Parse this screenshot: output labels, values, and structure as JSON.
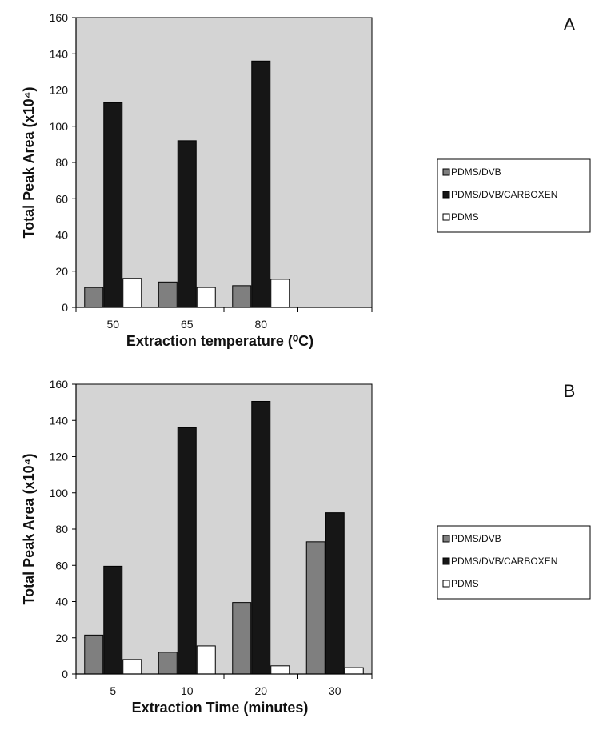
{
  "colors": {
    "plot_background": "#d4d4d4",
    "PDMS/DVB": "#7f7f7f",
    "PDMS/DVB/CARBOXEN": "#161616",
    "PDMS": "#ffffff",
    "axis": "#000000"
  },
  "chart_data": [
    {
      "type": "bar",
      "panel_label": "A",
      "title": "",
      "xlabel": "Extraction temperature (⁰C)",
      "ylabel": "Total Peak Area (x10⁴)",
      "categories": [
        "50",
        "65",
        "80"
      ],
      "category_slots": 4,
      "ylim": [
        0,
        160
      ],
      "yticks": [
        0,
        20,
        40,
        60,
        80,
        100,
        120,
        140,
        160
      ],
      "grid": false,
      "legend_position": "right",
      "series": [
        {
          "name": "PDMS/DVB",
          "values": [
            11,
            14,
            12
          ]
        },
        {
          "name": "PDMS/DVB/CARBOXEN",
          "values": [
            113,
            92,
            136
          ]
        },
        {
          "name": "PDMS",
          "values": [
            16,
            11,
            15.5
          ]
        }
      ]
    },
    {
      "type": "bar",
      "panel_label": "B",
      "title": "",
      "xlabel": "Extraction Time (minutes)",
      "ylabel": "Total Peak Area (x10⁴)",
      "categories": [
        "5",
        "10",
        "20",
        "30"
      ],
      "category_slots": 4,
      "ylim": [
        0,
        160
      ],
      "yticks": [
        0,
        20,
        40,
        60,
        80,
        100,
        120,
        140,
        160
      ],
      "grid": false,
      "legend_position": "right",
      "series": [
        {
          "name": "PDMS/DVB",
          "values": [
            21.5,
            12,
            39.5,
            73
          ]
        },
        {
          "name": "PDMS/DVB/CARBOXEN",
          "values": [
            59.5,
            136,
            150.5,
            89
          ]
        },
        {
          "name": "PDMS",
          "values": [
            8,
            15.5,
            4.5,
            3.5
          ]
        }
      ]
    }
  ]
}
